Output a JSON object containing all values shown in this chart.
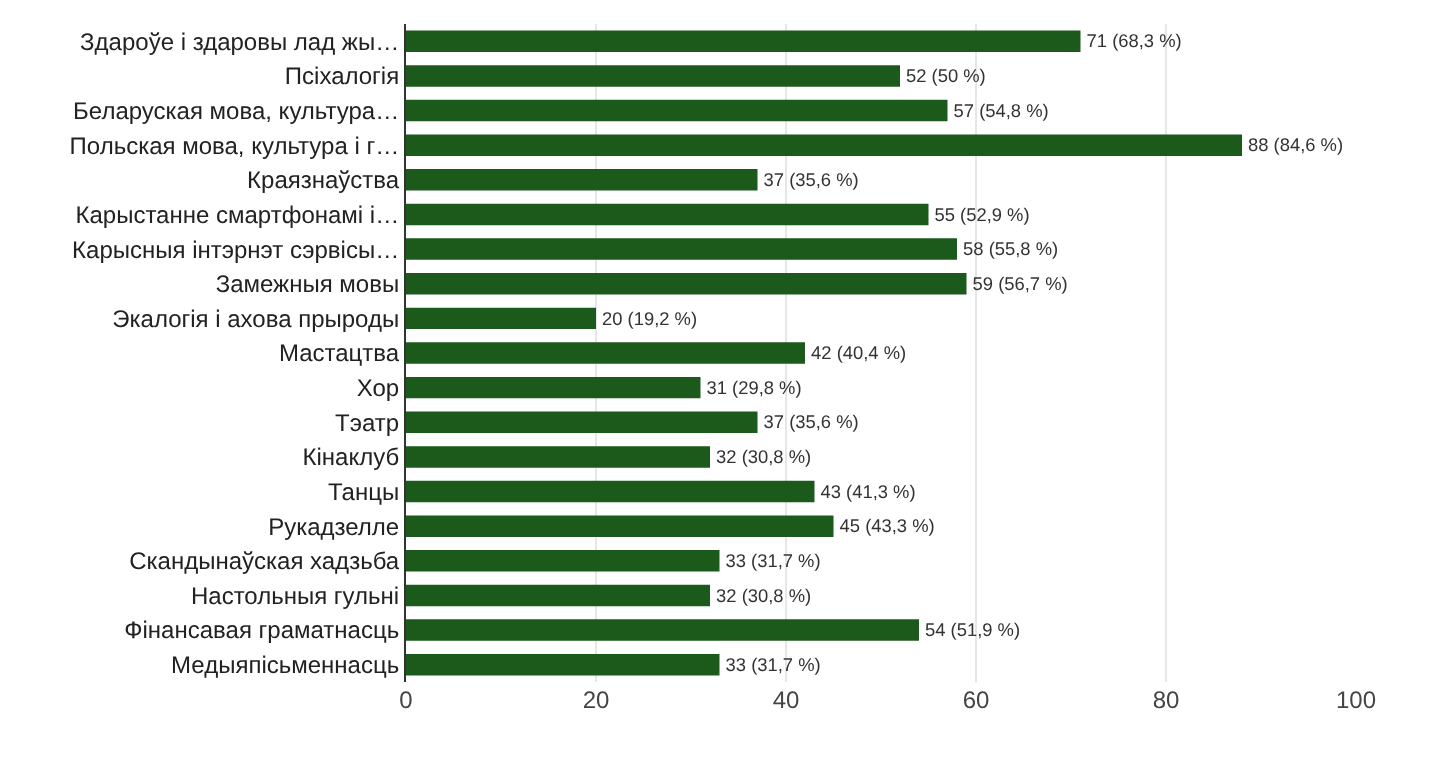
{
  "chart_data": {
    "type": "bar",
    "orientation": "horizontal",
    "categories": [
      "Здароўе і здаровы лад жы…",
      "Псіхалогія",
      "Беларуская мова, культура…",
      "Польская мова, культура і г…",
      "Краязнаўства",
      "Карыстанне смартфонамі і…",
      "Карысныя інтэрнэт сэрвісы…",
      "Замежныя мовы",
      "Экалогія і ахова прыроды",
      "Мастацтва",
      "Хор",
      "Тэатр",
      "Кінаклуб",
      "Танцы",
      "Рукадзелле",
      "Скандынаўская хадзьба",
      "Настольныя гульні",
      "Фінансавая граматнасць",
      "Медыяпісьменнасць"
    ],
    "values": [
      71,
      52,
      57,
      88,
      37,
      55,
      58,
      59,
      20,
      42,
      31,
      37,
      32,
      43,
      45,
      33,
      32,
      54,
      33
    ],
    "value_labels": [
      "71 (68,3 %)",
      "52 (50 %)",
      "57 (54,8 %)",
      "88 (84,6 %)",
      "37 (35,6 %)",
      "55 (52,9 %)",
      "58 (55,8 %)",
      "59 (56,7 %)",
      "20 (19,2 %)",
      "42 (40,4 %)",
      "31 (29,8 %)",
      "37 (35,6 %)",
      "32 (30,8 %)",
      "43 (41,3 %)",
      "45 (43,3 %)",
      "33 (31,7 %)",
      "32 (30,8 %)",
      "54 (51,9 %)",
      "33 (31,7 %)"
    ],
    "color": "#1c5a1c",
    "xlim": [
      0,
      100
    ],
    "xticks": [
      0,
      20,
      40,
      60,
      80,
      100
    ],
    "grid": "x"
  }
}
